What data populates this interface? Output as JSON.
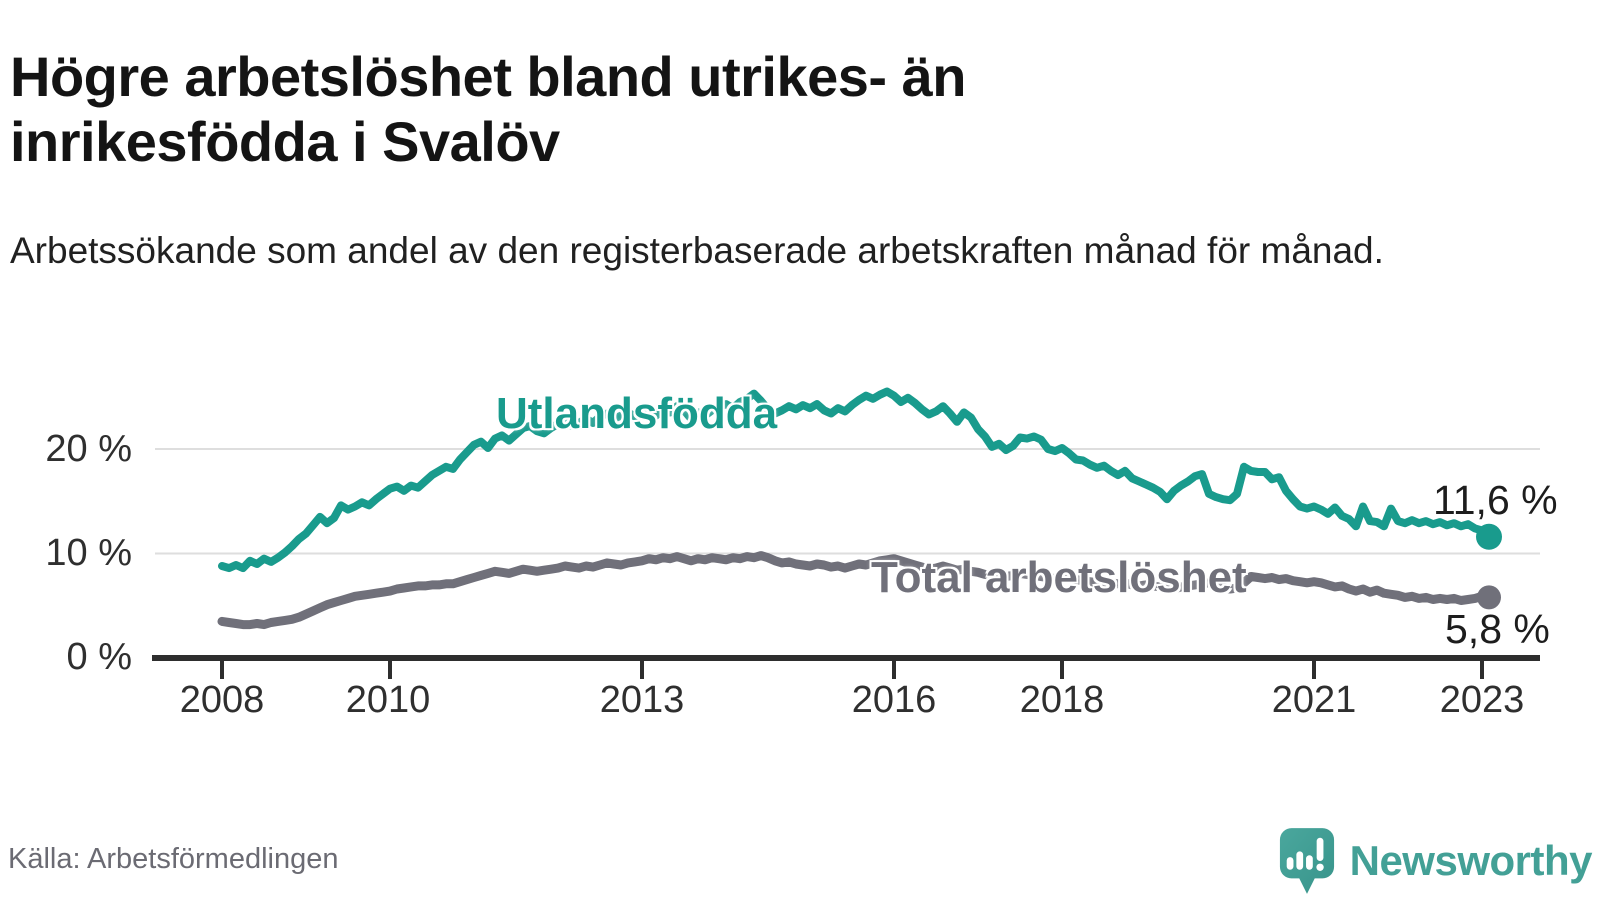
{
  "header": {
    "title": "Högre arbetslöshet bland utrikes- än inrikesfödda i Svalöv",
    "subtitle": "Arbetssökande som andel av den registerbaserade arbetskraften månad för månad."
  },
  "chart_data": {
    "type": "line",
    "title": "Högre arbetslöshet bland utrikes- än inrikesfödda i Svalöv",
    "unit": "%",
    "grid": "horizontal",
    "legend_position": "inline-labels",
    "x_start_year": 2008,
    "x_step_months": 1,
    "x_end_label_year": 2023,
    "ylim": [
      0,
      27
    ],
    "y_ticks": [
      {
        "label": "0 %",
        "value": 0
      },
      {
        "label": "10 %",
        "value": 10
      },
      {
        "label": "20 %",
        "value": 20
      }
    ],
    "x_ticks": [
      {
        "label": "2008",
        "year": 2008
      },
      {
        "label": "2010",
        "year": 2010
      },
      {
        "label": "2013",
        "year": 2013
      },
      {
        "label": "2016",
        "year": 2016
      },
      {
        "label": "2018",
        "year": 2018
      },
      {
        "label": "2021",
        "year": 2021
      },
      {
        "label": "2023",
        "year": 2023
      }
    ],
    "series": [
      {
        "name": "Utlandsfödda",
        "color": "#199b8d",
        "end_label": "11,6 %",
        "end_value": 11.6,
        "values": [
          8.8,
          8.6,
          8.9,
          8.6,
          9.3,
          9.0,
          9.5,
          9.2,
          9.6,
          10.1,
          10.7,
          11.4,
          11.9,
          12.7,
          13.5,
          12.9,
          13.4,
          14.6,
          14.2,
          14.5,
          14.9,
          14.6,
          15.2,
          15.7,
          16.2,
          16.4,
          16.0,
          16.5,
          16.3,
          16.9,
          17.5,
          17.9,
          18.3,
          18.1,
          19.0,
          19.7,
          20.4,
          20.7,
          20.1,
          21.0,
          21.3,
          20.8,
          21.4,
          22.0,
          22.2,
          21.7,
          21.5,
          22.0,
          22.4,
          22.7,
          22.2,
          22.5,
          22.9,
          22.5,
          23.1,
          23.4,
          22.9,
          23.2,
          23.5,
          23.1,
          23.4,
          23.7,
          23.2,
          23.9,
          23.5,
          24.1,
          23.7,
          22.9,
          23.5,
          23.2,
          23.7,
          24.0,
          24.3,
          23.9,
          24.5,
          24.8,
          25.3,
          24.6,
          23.8,
          23.4,
          23.7,
          24.1,
          23.8,
          24.2,
          23.9,
          24.3,
          23.7,
          23.4,
          23.9,
          23.6,
          24.2,
          24.7,
          25.1,
          24.8,
          25.2,
          25.5,
          25.1,
          24.5,
          24.9,
          24.4,
          23.8,
          23.3,
          23.6,
          24.1,
          23.4,
          22.6,
          23.5,
          23.0,
          21.9,
          21.2,
          20.2,
          20.5,
          19.9,
          20.3,
          21.1,
          21.0,
          21.2,
          20.9,
          20.0,
          19.8,
          20.1,
          19.6,
          19.0,
          18.9,
          18.5,
          18.2,
          18.4,
          17.9,
          17.5,
          17.9,
          17.2,
          16.9,
          16.6,
          16.3,
          15.9,
          15.2,
          16.0,
          16.5,
          16.9,
          17.4,
          17.6,
          15.7,
          15.4,
          15.2,
          15.1,
          15.7,
          18.3,
          17.9,
          17.8,
          17.8,
          17.1,
          17.3,
          16.0,
          15.2,
          14.5,
          14.3,
          14.5,
          14.2,
          13.8,
          14.4,
          13.6,
          13.3,
          12.6,
          14.5,
          13.1,
          13.0,
          12.6,
          14.3,
          13.1,
          12.9,
          13.2,
          12.9,
          13.1,
          12.8,
          13.0,
          12.7,
          12.9,
          12.6,
          12.8,
          12.4,
          12.2,
          11.6
        ]
      },
      {
        "name": "Total arbetslöshet",
        "color": "#70707a",
        "end_label": "5,8 %",
        "end_value": 5.8,
        "values": [
          3.5,
          3.4,
          3.3,
          3.2,
          3.2,
          3.3,
          3.2,
          3.4,
          3.5,
          3.6,
          3.7,
          3.9,
          4.2,
          4.5,
          4.8,
          5.1,
          5.3,
          5.5,
          5.7,
          5.9,
          6.0,
          6.1,
          6.2,
          6.3,
          6.4,
          6.6,
          6.7,
          6.8,
          6.9,
          6.9,
          7.0,
          7.0,
          7.1,
          7.1,
          7.3,
          7.5,
          7.7,
          7.9,
          8.1,
          8.3,
          8.2,
          8.1,
          8.3,
          8.5,
          8.4,
          8.3,
          8.4,
          8.5,
          8.6,
          8.8,
          8.7,
          8.6,
          8.8,
          8.7,
          8.9,
          9.1,
          9.0,
          8.9,
          9.1,
          9.2,
          9.3,
          9.5,
          9.4,
          9.6,
          9.5,
          9.7,
          9.5,
          9.3,
          9.5,
          9.4,
          9.6,
          9.5,
          9.4,
          9.6,
          9.5,
          9.7,
          9.6,
          9.8,
          9.6,
          9.3,
          9.1,
          9.2,
          9.0,
          8.9,
          8.8,
          9.0,
          8.9,
          8.7,
          8.8,
          8.6,
          8.8,
          9.0,
          8.9,
          9.1,
          9.3,
          9.4,
          9.5,
          9.3,
          9.1,
          8.9,
          8.7,
          8.5,
          8.6,
          8.8,
          8.6,
          8.4,
          8.5,
          8.3,
          8.2,
          8.0,
          7.9,
          8.0,
          7.8,
          7.9,
          8.1,
          8.0,
          7.9,
          7.8,
          7.7,
          7.6,
          7.7,
          7.6,
          7.5,
          7.4,
          7.3,
          7.2,
          7.3,
          7.2,
          7.1,
          7.2,
          7.0,
          6.9,
          7.0,
          6.9,
          6.8,
          6.7,
          6.6,
          6.8,
          6.9,
          7.0,
          7.1,
          7.2,
          6.8,
          6.7,
          6.6,
          6.7,
          7.2,
          7.8,
          7.7,
          7.6,
          7.7,
          7.5,
          7.6,
          7.4,
          7.3,
          7.2,
          7.3,
          7.2,
          7.0,
          6.8,
          6.9,
          6.6,
          6.4,
          6.6,
          6.3,
          6.5,
          6.2,
          6.1,
          6.0,
          5.8,
          5.9,
          5.7,
          5.8,
          5.6,
          5.7,
          5.6,
          5.7,
          5.5,
          5.6,
          5.7,
          5.9,
          5.8
        ]
      }
    ]
  },
  "footer": {
    "source": "Källa: Arbetsförmedlingen",
    "brand": "Newsworthy",
    "logo_icon": "newsworthy-speech-bubble-barchart-icon",
    "brand_color": "#43a096"
  }
}
